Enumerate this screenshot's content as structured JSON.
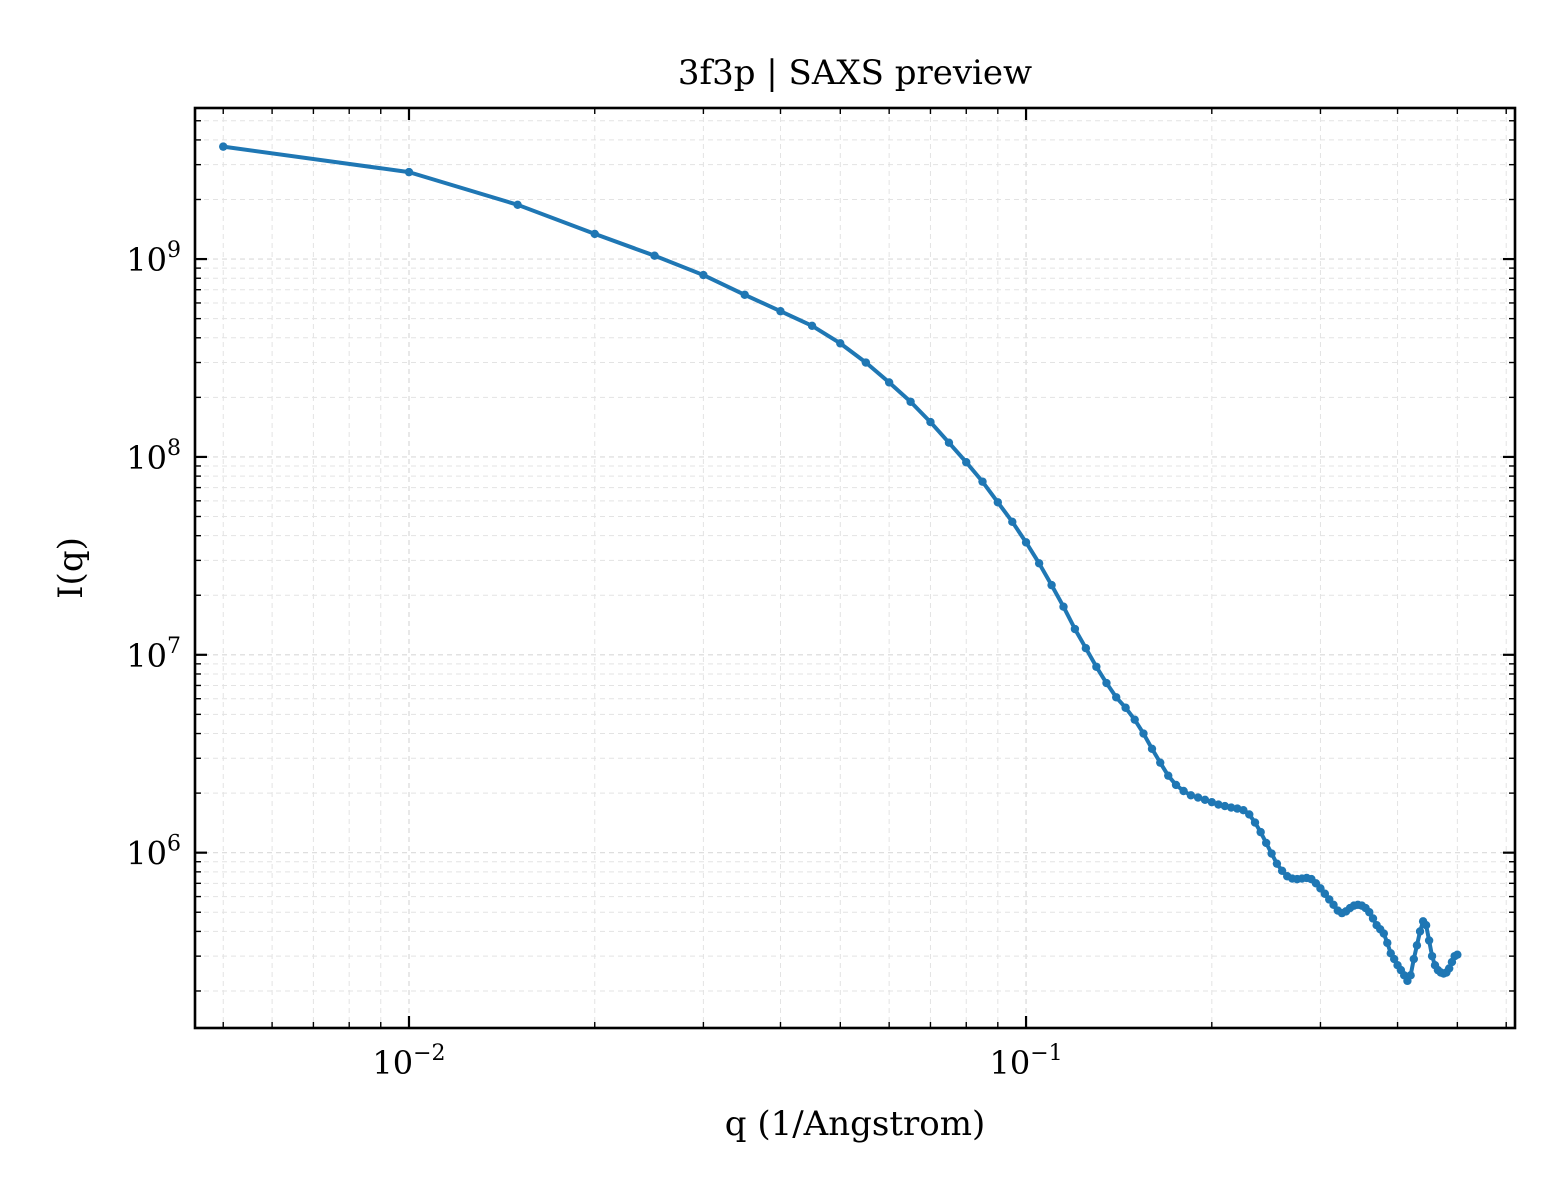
{
  "chart_data": {
    "type": "line",
    "title": "3f3p | SAXS preview",
    "xlabel": "q (1/Angstrom)",
    "ylabel": "I(q)",
    "xscale": "log",
    "yscale": "log",
    "xlim": [
      0.0045,
      0.62
    ],
    "ylim": [
      130000,
      5800000000
    ],
    "grid": "both (dashed, major and minor)",
    "x_tick_labels": [
      {
        "value": 0.01,
        "base": "10",
        "exp": "−2"
      },
      {
        "value": 0.1,
        "base": "10",
        "exp": "−1"
      }
    ],
    "y_tick_labels": [
      {
        "value": 1000000,
        "base": "10",
        "exp": "6"
      },
      {
        "value": 10000000,
        "base": "10",
        "exp": "7"
      },
      {
        "value": 100000000,
        "base": "10",
        "exp": "8"
      },
      {
        "value": 1000000000,
        "base": "10",
        "exp": "9"
      }
    ],
    "series": [
      {
        "color": "#1f77b4",
        "marker": "circle",
        "x": [
          0.005,
          0.01,
          0.015,
          0.02,
          0.025,
          0.03,
          0.035,
          0.04,
          0.045,
          0.05,
          0.055,
          0.06,
          0.065,
          0.07,
          0.075,
          0.08,
          0.085,
          0.09,
          0.095,
          0.1,
          0.105,
          0.11,
          0.115,
          0.12,
          0.125,
          0.13,
          0.135,
          0.14,
          0.145,
          0.15,
          0.155,
          0.16,
          0.165,
          0.17,
          0.175,
          0.18,
          0.185,
          0.19,
          0.195,
          0.2,
          0.205,
          0.21,
          0.215,
          0.22,
          0.225,
          0.23,
          0.235,
          0.24,
          0.245,
          0.25,
          0.255,
          0.26,
          0.265,
          0.27,
          0.275,
          0.28,
          0.285,
          0.29,
          0.295,
          0.3,
          0.305,
          0.31,
          0.315,
          0.32,
          0.325,
          0.33,
          0.335,
          0.34,
          0.345,
          0.35,
          0.355,
          0.36,
          0.365,
          0.37,
          0.375,
          0.38,
          0.385,
          0.39,
          0.395,
          0.4,
          0.405,
          0.41,
          0.415,
          0.42,
          0.425,
          0.43,
          0.435,
          0.44,
          0.445,
          0.45,
          0.455,
          0.46,
          0.465,
          0.47,
          0.475,
          0.48,
          0.485,
          0.49,
          0.495,
          0.5
        ],
        "y": [
          3700000000,
          2750000000,
          1880000000,
          1340000000,
          1040000000,
          830000000,
          660000000,
          545000000,
          460000000,
          375000000,
          300000000,
          238000000,
          190000000,
          150000000,
          118000000,
          94000000,
          75000000,
          59000000,
          47000000,
          37000000,
          29000000,
          22500000,
          17500000,
          13500000,
          10800000,
          8700000,
          7200000,
          6100000,
          5400000,
          4700000,
          4000000,
          3350000,
          2850000,
          2450000,
          2200000,
          2050000,
          1950000,
          1900000,
          1850000,
          1800000,
          1750000,
          1720000,
          1690000,
          1670000,
          1640000,
          1560000,
          1420000,
          1270000,
          1120000,
          990000,
          880000,
          810000,
          760000,
          740000,
          735000,
          740000,
          745000,
          735000,
          700000,
          660000,
          620000,
          580000,
          545000,
          510000,
          495000,
          505000,
          525000,
          540000,
          545000,
          540000,
          525000,
          500000,
          465000,
          430000,
          410000,
          390000,
          350000,
          310000,
          290000,
          270000,
          255000,
          240000,
          225000,
          240000,
          290000,
          340000,
          400000,
          450000,
          430000,
          360000,
          300000,
          270000,
          255000,
          248000,
          245000,
          248000,
          260000,
          280000,
          300000,
          305000
        ]
      }
    ]
  }
}
